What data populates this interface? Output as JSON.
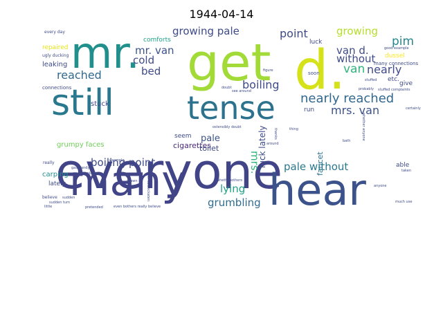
{
  "title": "1944-04-14",
  "chart_data": {
    "type": "wordcloud",
    "title": "1944-04-14",
    "words": [
      {
        "text": "everyone",
        "color": "#414487"
      },
      {
        "text": "many",
        "color": "#414487"
      },
      {
        "text": "hear",
        "color": "#3b528b"
      },
      {
        "text": "mr.",
        "color": "#21908d"
      },
      {
        "text": "get",
        "color": "#a2da37"
      },
      {
        "text": "d.",
        "color": "#d5e21a"
      },
      {
        "text": "still",
        "color": "#2a788e"
      },
      {
        "text": "tense",
        "color": "#2c728e"
      },
      {
        "text": "nearly reached",
        "color": "#31688e"
      },
      {
        "text": "mrs. van",
        "color": "#3b528b"
      },
      {
        "text": "pale without",
        "color": "#2a788e"
      },
      {
        "text": "growing pale",
        "color": "#3e4a89"
      },
      {
        "text": "point",
        "color": "#3e4a89"
      },
      {
        "text": "growing",
        "color": "#b5de2b"
      },
      {
        "text": "pim",
        "color": "#24868e"
      },
      {
        "text": "mr. van",
        "color": "#3b528b"
      },
      {
        "text": "van d.",
        "color": "#3e4a89"
      },
      {
        "text": "cold",
        "color": "#3e4a89"
      },
      {
        "text": "bed",
        "color": "#3e4a89"
      },
      {
        "text": "reached",
        "color": "#31688e"
      },
      {
        "text": "boiling",
        "color": "#3e4a89"
      },
      {
        "text": "van",
        "color": "#2fb47c"
      },
      {
        "text": "nearly",
        "color": "#3e4a89"
      },
      {
        "text": "without",
        "color": "#3e4a89"
      },
      {
        "text": "boiling point",
        "color": "#3e4a89"
      },
      {
        "text": "lying",
        "color": "#1fa187"
      },
      {
        "text": "grumbling",
        "color": "#2f6c8e"
      },
      {
        "text": "mrs.",
        "color": "#2fb47c"
      },
      {
        "text": "luck lately",
        "color": "#3e4a89"
      },
      {
        "text": "pale",
        "color": "#3b528b"
      },
      {
        "text": "cigarettes",
        "color": "#482878"
      },
      {
        "text": "toilet",
        "color": "#3e4a89"
      },
      {
        "text": "seem",
        "color": "#3e4a89"
      },
      {
        "text": "comforts",
        "color": "#20a386"
      },
      {
        "text": "leaking",
        "color": "#3e4a89"
      },
      {
        "text": "carping",
        "color": "#21908d"
      },
      {
        "text": "lately",
        "color": "#3e4a89"
      },
      {
        "text": "stuck",
        "color": "#3e4a89"
      },
      {
        "text": "grumpy faces",
        "color": "#6ece58"
      },
      {
        "text": "faucet",
        "color": "#2c728e"
      },
      {
        "text": "run",
        "color": "#3e4a89"
      },
      {
        "text": "etc.",
        "color": "#3e4a89"
      },
      {
        "text": "give",
        "color": "#3e4a89"
      },
      {
        "text": "able",
        "color": "#3e4a89"
      },
      {
        "text": "luck",
        "color": "#3e4a89"
      },
      {
        "text": "soon",
        "color": "#3e4a89"
      },
      {
        "text": "dussel",
        "color": "#fde725"
      },
      {
        "text": "repaired",
        "color": "#e5e419"
      },
      {
        "text": "connections",
        "color": "#3e4a89"
      },
      {
        "text": "many connections",
        "color": "#3e4a89"
      },
      {
        "text": "every day",
        "color": "#3e4a89"
      },
      {
        "text": "ugly ducking",
        "color": "#3e4a89"
      },
      {
        "text": "believe",
        "color": "#3e4a89"
      },
      {
        "text": "example",
        "color": "#3e4a89"
      },
      {
        "text": "good example",
        "color": "#3e4a89"
      },
      {
        "text": "stuffed",
        "color": "#3e4a89"
      },
      {
        "text": "stuffed complaints",
        "color": "#3e4a89"
      },
      {
        "text": "certainly",
        "color": "#3e4a89"
      },
      {
        "text": "whether anyone",
        "color": "#3e4a89"
      },
      {
        "text": "really",
        "color": "#3e4a89"
      },
      {
        "text": "sudden",
        "color": "#3e4a89"
      },
      {
        "text": "much use",
        "color": "#3e4a89"
      },
      {
        "text": "bothers",
        "color": "#3e4a89"
      },
      {
        "text": "even bothers really believe",
        "color": "#3e4a89"
      },
      {
        "text": "probably",
        "color": "#3e4a89"
      },
      {
        "text": "doubt",
        "color": "#3e4a89"
      },
      {
        "text": "gasbrandy",
        "color": "#3e4a89"
      },
      {
        "text": "figure",
        "color": "#3e4a89"
      },
      {
        "text": "see around",
        "color": "#3e4a89"
      },
      {
        "text": "thanks",
        "color": "#3e4a89"
      },
      {
        "text": "drawn",
        "color": "#3e4a89"
      },
      {
        "text": "little",
        "color": "#3e4a89"
      },
      {
        "text": "ostensibly doubt",
        "color": "#3e4a89"
      },
      {
        "text": "whether",
        "color": "#3e4a89"
      },
      {
        "text": "complaints",
        "color": "#3e4a89"
      },
      {
        "text": "mr. kulbeckaten",
        "color": "#3e4a89"
      },
      {
        "text": "thing",
        "color": "#3e4a89"
      },
      {
        "text": "anyone",
        "color": "#3e4a89"
      },
      {
        "text": "taken",
        "color": "#3e4a89"
      },
      {
        "text": "around",
        "color": "#3e4a89"
      },
      {
        "text": "pretended",
        "color": "#3e4a89"
      },
      {
        "text": "bath",
        "color": "#3e4a89"
      },
      {
        "text": "sudden turn",
        "color": "#3e4a89"
      }
    ]
  }
}
